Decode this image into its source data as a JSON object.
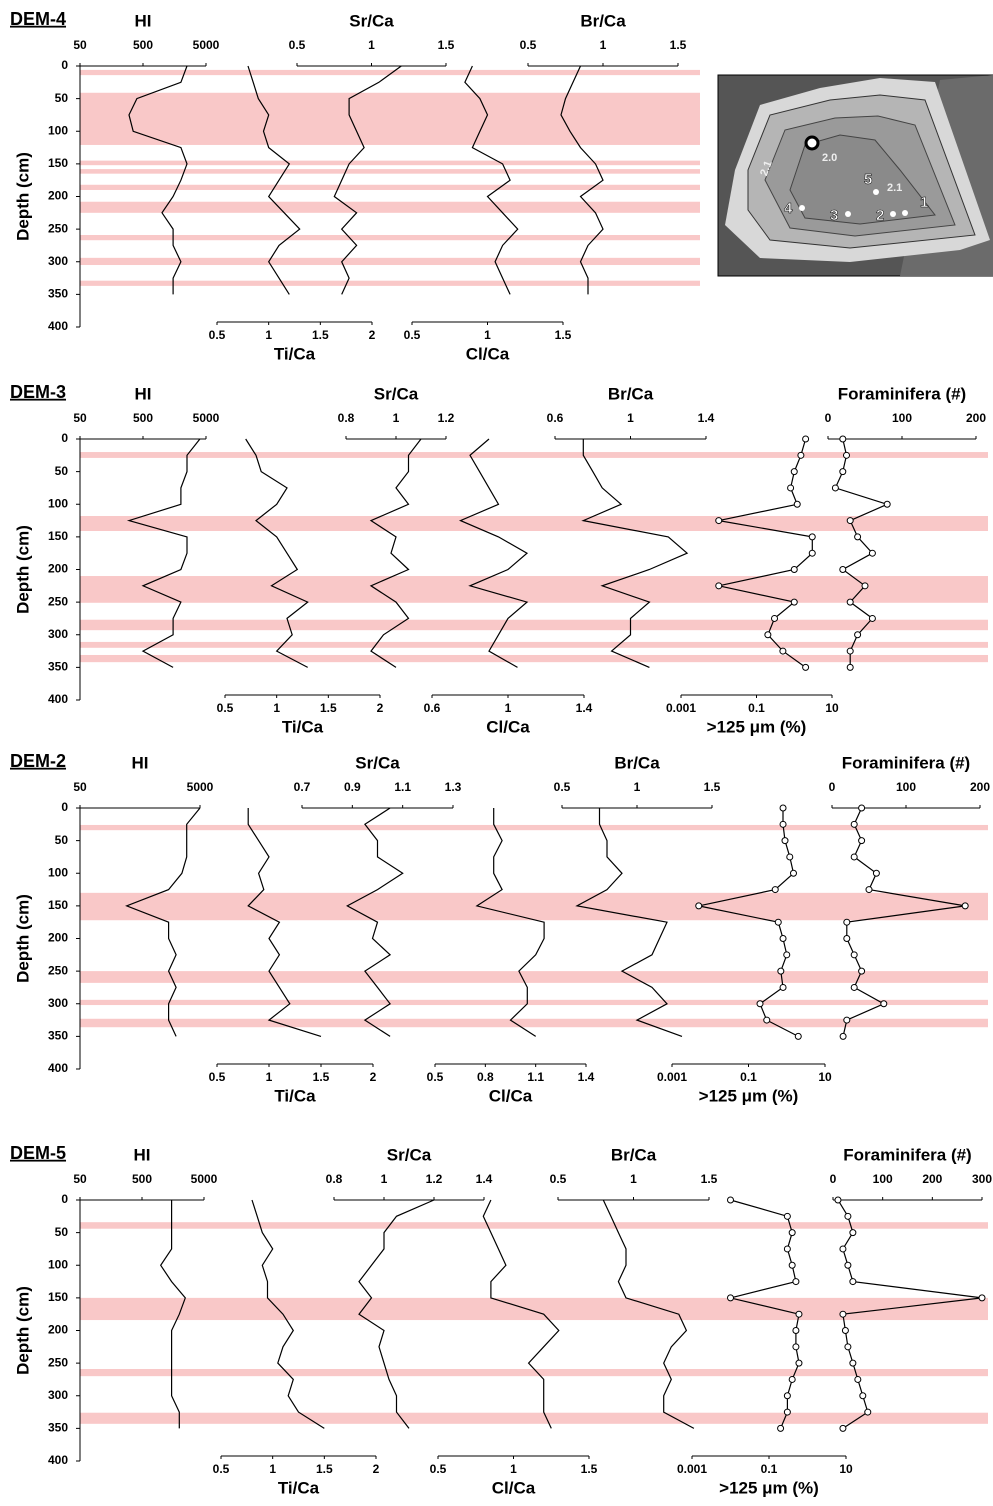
{
  "chart_data": [
    {
      "type": "line",
      "title": "DEM-4",
      "y_label": "Depth (cm)",
      "ylim": [
        0,
        400
      ],
      "yticks": [
        0,
        50,
        100,
        150,
        200,
        250,
        300,
        350,
        400
      ],
      "y_inverted": true,
      "band_color": "#f9c8c8",
      "depths": [
        0,
        25,
        50,
        75,
        100,
        125,
        150,
        175,
        200,
        225,
        250,
        275,
        300,
        325,
        350
      ],
      "bands": [
        [
          6,
          14
        ],
        [
          41,
          121
        ],
        [
          145,
          152
        ],
        [
          158,
          165
        ],
        [
          182,
          190
        ],
        [
          208,
          225
        ],
        [
          259,
          267
        ],
        [
          294,
          305
        ],
        [
          329,
          337
        ]
      ],
      "tracks": [
        {
          "name": "HI",
          "axis": "top",
          "log": true,
          "xlim": [
            50,
            5000
          ],
          "xticks": [
            50,
            500,
            5000
          ],
          "color": "#000000",
          "values": [
            2500,
            2000,
            400,
            300,
            350,
            2000,
            2500,
            2000,
            1500,
            1000,
            1500,
            1500,
            2000,
            1500,
            1500
          ]
        },
        {
          "name": "Sr/Ca",
          "axis": "top",
          "xlim": [
            0.5,
            1.5
          ],
          "xticks": [
            0.5,
            1,
            1.5
          ],
          "color": "#000000",
          "values": [
            1.2,
            1.05,
            0.85,
            0.85,
            0.9,
            0.95,
            0.85,
            0.8,
            0.75,
            0.9,
            0.8,
            0.9,
            0.8,
            0.85,
            0.8
          ]
        },
        {
          "name": "Ti/Ca",
          "axis": "bottom",
          "xlim": [
            0.5,
            2
          ],
          "xticks": [
            0.5,
            1,
            1.5,
            2
          ],
          "color": "#000000",
          "values": [
            0.8,
            0.85,
            0.9,
            1.0,
            0.95,
            1.0,
            1.2,
            1.1,
            1.0,
            1.15,
            1.3,
            1.1,
            1.0,
            1.1,
            1.2
          ]
        },
        {
          "name": "Cl/Ca",
          "axis": "bottom",
          "xlim": [
            0.5,
            1.5
          ],
          "xticks": [
            0.5,
            1,
            1.5
          ],
          "color": "#000000",
          "values": [
            0.9,
            0.85,
            0.95,
            1.0,
            0.95,
            0.9,
            1.1,
            1.15,
            1.0,
            1.1,
            1.2,
            1.1,
            1.05,
            1.1,
            1.15
          ]
        },
        {
          "name": "Br/Ca",
          "axis": "top",
          "xlim": [
            0.5,
            1.5
          ],
          "xticks": [
            0.5,
            1,
            1.5
          ],
          "color": "#000000",
          "values": [
            0.85,
            0.8,
            0.75,
            0.72,
            0.78,
            0.85,
            0.95,
            1.0,
            0.85,
            0.95,
            1.0,
            0.9,
            0.85,
            0.9,
            0.9
          ]
        }
      ]
    },
    {
      "type": "line",
      "title": "DEM-3",
      "y_label": "Depth (cm)",
      "ylim": [
        0,
        400
      ],
      "yticks": [
        0,
        50,
        100,
        150,
        200,
        250,
        300,
        350,
        400
      ],
      "y_inverted": true,
      "band_color": "#f9c8c8",
      "depths": [
        0,
        25,
        50,
        75,
        100,
        125,
        150,
        175,
        200,
        225,
        250,
        275,
        300,
        325,
        350
      ],
      "bands": [
        [
          20,
          29
        ],
        [
          118,
          141
        ],
        [
          210,
          251
        ],
        [
          277,
          293
        ],
        [
          311,
          320
        ],
        [
          331,
          342
        ]
      ],
      "tracks": [
        {
          "name": "HI",
          "axis": "top",
          "log": true,
          "xlim": [
            50,
            5000
          ],
          "xticks": [
            50,
            500,
            5000
          ],
          "color": "#000000",
          "values": [
            4000,
            2500,
            2500,
            2000,
            2000,
            300,
            2500,
            2500,
            2000,
            500,
            2000,
            1500,
            1500,
            500,
            1500
          ]
        },
        {
          "name": "Sr/Ca",
          "axis": "top",
          "xlim": [
            0.8,
            1.2
          ],
          "xticks": [
            0.8,
            1,
            1.2
          ],
          "color": "#000000",
          "values": [
            1.1,
            1.05,
            1.05,
            1.0,
            1.05,
            0.9,
            1.0,
            0.98,
            1.05,
            0.9,
            1.0,
            1.05,
            0.95,
            0.9,
            1.0
          ]
        },
        {
          "name": "Ti/Ca",
          "axis": "bottom",
          "xlim": [
            0.5,
            2
          ],
          "xticks": [
            0.5,
            1,
            1.5,
            2
          ],
          "color": "#000000",
          "values": [
            0.7,
            0.8,
            0.85,
            1.1,
            1.0,
            0.8,
            1.0,
            1.1,
            1.2,
            0.95,
            1.3,
            1.1,
            1.15,
            1.0,
            1.3
          ]
        },
        {
          "name": "Cl/Ca",
          "axis": "bottom",
          "xlim": [
            0.6,
            1.4
          ],
          "xticks": [
            0.6,
            1,
            1.4
          ],
          "color": "#000000",
          "values": [
            0.9,
            0.8,
            0.85,
            0.9,
            0.95,
            0.75,
            0.95,
            1.1,
            1.0,
            0.8,
            1.1,
            1.0,
            0.95,
            0.9,
            1.05
          ]
        },
        {
          "name": "Br/Ca",
          "axis": "top",
          "xlim": [
            0.6,
            1.4
          ],
          "xticks": [
            0.6,
            1,
            1.4
          ],
          "color": "#000000",
          "values": [
            0.75,
            0.75,
            0.8,
            0.85,
            0.95,
            0.75,
            1.2,
            1.3,
            1.1,
            0.85,
            1.1,
            1.0,
            1.0,
            0.9,
            1.1
          ]
        },
        {
          "name": ">125 μm (%)",
          "axis": "bottom",
          "log": true,
          "markers": true,
          "xlim": [
            0.001,
            10
          ],
          "xticks": [
            0.001,
            0.1,
            10
          ],
          "color": "#000000",
          "values": [
            2,
            1.5,
            1.0,
            0.8,
            1.2,
            0.01,
            3,
            3,
            1,
            0.01,
            1,
            0.3,
            0.2,
            0.5,
            2
          ]
        },
        {
          "name": "Foraminifera (#)",
          "axis": "top",
          "markers": true,
          "xlim": [
            0,
            200
          ],
          "xticks": [
            0,
            100,
            200
          ],
          "color": "#000000",
          "values": [
            20,
            25,
            20,
            10,
            80,
            30,
            40,
            60,
            20,
            50,
            30,
            60,
            40,
            30,
            30
          ]
        }
      ]
    },
    {
      "type": "line",
      "title": "DEM-2",
      "y_label": "Depth (cm)",
      "ylim": [
        0,
        400
      ],
      "yticks": [
        0,
        50,
        100,
        150,
        200,
        250,
        300,
        350,
        400
      ],
      "y_inverted": true,
      "band_color": "#f9c8c8",
      "depths": [
        0,
        25,
        50,
        75,
        100,
        125,
        150,
        175,
        200,
        225,
        250,
        275,
        300,
        325,
        350
      ],
      "bands": [
        [
          26,
          34
        ],
        [
          130,
          172
        ],
        [
          250,
          268
        ],
        [
          294,
          302
        ],
        [
          323,
          336
        ]
      ],
      "tracks": [
        {
          "name": "HI",
          "axis": "top",
          "log": true,
          "xlim": [
            50,
            5000
          ],
          "xticks": [
            50,
            5000
          ],
          "color": "#000000",
          "values": [
            5000,
            3000,
            3000,
            3000,
            2500,
            1500,
            300,
            1500,
            1500,
            2000,
            1500,
            2000,
            1500,
            1500,
            2000
          ]
        },
        {
          "name": "Sr/Ca",
          "axis": "top",
          "xlim": [
            0.7,
            1.3
          ],
          "xticks": [
            0.7,
            0.9,
            1.1,
            1.3
          ],
          "color": "#000000",
          "values": [
            1.05,
            0.95,
            1.0,
            1.0,
            1.1,
            1.0,
            0.88,
            1.0,
            0.98,
            1.05,
            0.95,
            1.0,
            1.05,
            0.95,
            1.05
          ]
        },
        {
          "name": "Ti/Ca",
          "axis": "bottom",
          "xlim": [
            0.5,
            2
          ],
          "xticks": [
            0.5,
            1,
            1.5,
            2
          ],
          "color": "#000000",
          "values": [
            0.8,
            0.8,
            0.9,
            1.0,
            0.9,
            0.95,
            0.8,
            1.1,
            1.0,
            1.1,
            1.0,
            1.1,
            1.2,
            1.0,
            1.5
          ]
        },
        {
          "name": "Cl/Ca",
          "axis": "bottom",
          "xlim": [
            0.5,
            1.4
          ],
          "xticks": [
            0.5,
            0.8,
            1.1,
            1.4
          ],
          "color": "#000000",
          "values": [
            0.85,
            0.85,
            0.9,
            0.85,
            0.85,
            0.9,
            0.75,
            1.15,
            1.15,
            1.1,
            1.0,
            1.05,
            1.05,
            0.95,
            1.1
          ]
        },
        {
          "name": "Br/Ca",
          "axis": "top",
          "xlim": [
            0.5,
            1.5
          ],
          "xticks": [
            0.5,
            1,
            1.5
          ],
          "color": "#000000",
          "values": [
            0.75,
            0.75,
            0.8,
            0.8,
            0.9,
            0.8,
            0.6,
            1.2,
            1.15,
            1.1,
            0.9,
            1.1,
            1.2,
            1.0,
            1.3
          ]
        },
        {
          "name": ">125 μm (%)",
          "axis": "bottom",
          "log": true,
          "markers": true,
          "xlim": [
            0.001,
            10
          ],
          "xticks": [
            0.001,
            0.1,
            10
          ],
          "color": "#000000",
          "values": [
            0.8,
            0.8,
            0.9,
            1.2,
            1.5,
            0.5,
            0.005,
            0.6,
            0.8,
            1.0,
            0.7,
            0.8,
            0.2,
            0.3,
            2
          ]
        },
        {
          "name": "Foraminifera (#)",
          "axis": "top",
          "markers": true,
          "xlim": [
            0,
            200
          ],
          "xticks": [
            0,
            100,
            200
          ],
          "color": "#000000",
          "values": [
            40,
            30,
            40,
            30,
            60,
            50,
            180,
            20,
            20,
            30,
            40,
            30,
            70,
            20,
            15
          ]
        }
      ]
    },
    {
      "type": "line",
      "title": "DEM-5",
      "y_label": "Depth (cm)",
      "ylim": [
        0,
        400
      ],
      "yticks": [
        0,
        50,
        100,
        150,
        200,
        250,
        300,
        350,
        400
      ],
      "y_inverted": true,
      "band_color": "#f9c8c8",
      "depths": [
        0,
        25,
        50,
        75,
        100,
        125,
        150,
        175,
        200,
        225,
        250,
        275,
        300,
        325,
        350
      ],
      "bands": [
        [
          34,
          44
        ],
        [
          150,
          184
        ],
        [
          259,
          270
        ],
        [
          326,
          343
        ]
      ],
      "tracks": [
        {
          "name": "HI",
          "axis": "top",
          "log": true,
          "xlim": [
            50,
            5000
          ],
          "xticks": [
            50,
            500,
            5000
          ],
          "color": "#000000",
          "values": [
            1500,
            1500,
            1500,
            1500,
            1000,
            1500,
            2500,
            2000,
            1500,
            1500,
            1500,
            1500,
            1500,
            2000,
            2000
          ]
        },
        {
          "name": "Sr/Ca",
          "axis": "top",
          "xlim": [
            0.8,
            1.4
          ],
          "xticks": [
            0.8,
            1,
            1.2,
            1.4
          ],
          "color": "#000000",
          "values": [
            1.2,
            1.05,
            1.0,
            1.0,
            0.95,
            0.9,
            0.95,
            0.9,
            1.0,
            0.98,
            1.0,
            1.02,
            1.05,
            1.05,
            1.1
          ]
        },
        {
          "name": "Ti/Ca",
          "axis": "bottom",
          "xlim": [
            0.5,
            2
          ],
          "xticks": [
            0.5,
            1,
            1.5,
            2
          ],
          "color": "#000000",
          "values": [
            0.8,
            0.85,
            0.9,
            1.0,
            0.9,
            0.95,
            0.95,
            1.1,
            1.2,
            1.1,
            1.05,
            1.2,
            1.15,
            1.25,
            1.5
          ]
        },
        {
          "name": "Cl/Ca",
          "axis": "bottom",
          "xlim": [
            0.5,
            1.5
          ],
          "xticks": [
            0.5,
            1,
            1.5
          ],
          "color": "#000000",
          "values": [
            0.85,
            0.8,
            0.85,
            0.9,
            0.95,
            0.85,
            0.85,
            1.2,
            1.3,
            1.2,
            1.1,
            1.2,
            1.2,
            1.2,
            1.25
          ]
        },
        {
          "name": "Br/Ca",
          "axis": "top",
          "xlim": [
            0.5,
            1.5
          ],
          "xticks": [
            0.5,
            1,
            1.5
          ],
          "color": "#000000",
          "values": [
            0.8,
            0.85,
            0.9,
            0.95,
            0.95,
            0.9,
            0.95,
            1.3,
            1.35,
            1.25,
            1.2,
            1.25,
            1.2,
            1.2,
            1.4
          ]
        },
        {
          "name": ">125 μm (%)",
          "axis": "bottom",
          "log": true,
          "markers": true,
          "xlim": [
            0.001,
            10
          ],
          "xticks": [
            0.001,
            0.1,
            10
          ],
          "color": "#000000",
          "values": [
            0.01,
            0.3,
            0.4,
            0.3,
            0.4,
            0.5,
            0.01,
            0.6,
            0.5,
            0.5,
            0.6,
            0.4,
            0.3,
            0.3,
            0.2
          ]
        },
        {
          "name": "Foraminifera (#)",
          "axis": "top",
          "markers": true,
          "xlim": [
            0,
            300
          ],
          "xticks": [
            0,
            100,
            200,
            300
          ],
          "color": "#000000",
          "values": [
            10,
            30,
            40,
            20,
            30,
            40,
            300,
            20,
            25,
            30,
            40,
            50,
            60,
            70,
            20
          ]
        }
      ]
    }
  ],
  "map": {
    "sites": [
      "1",
      "2",
      "3",
      "4",
      "5"
    ],
    "contours": [
      "2.1",
      "2.0",
      "2.1"
    ]
  }
}
